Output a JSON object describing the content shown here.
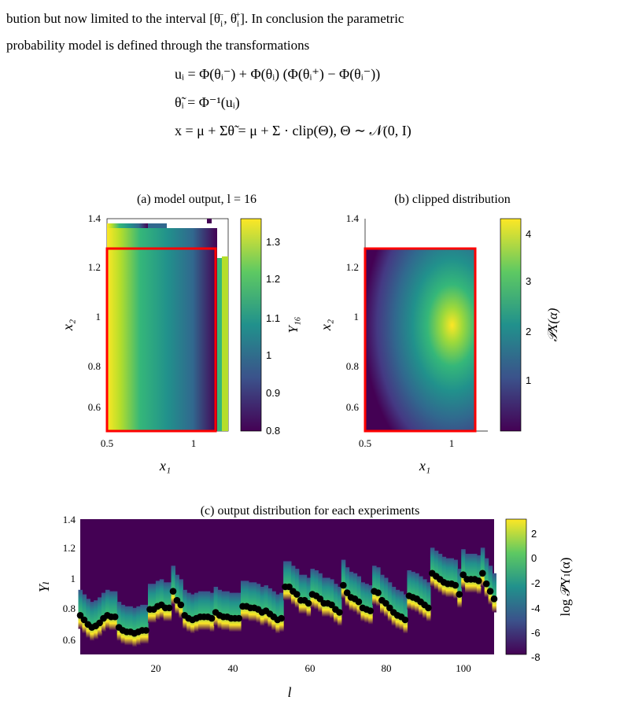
{
  "text": {
    "line1": "bution but now limited to the interval [θ",
    "line1_sub": "i",
    "line1_sup_minus": "−",
    "line1_mid": ", θ",
    "line1_sup_plus": "+",
    "line1_end": "]. In conclusion the parametric",
    "line2": "probability model is defined through the transformations"
  },
  "equations": {
    "eq1": "uᵢ = Φ(θᵢ⁻) + Φ(θᵢ) (Φ(θᵢ⁺) − Φ(θᵢ⁻))",
    "eq2": "θ̃ᵢ = Φ⁻¹(uᵢ)",
    "eq3": "x = μ + Σθ̃ = μ + Σ · clip(Θ),  Θ ∼ 𝒩(0, I)"
  },
  "figures": {
    "a": {
      "title": "(a) model output, l = 16",
      "xlabel": "x₁",
      "ylabel": "x₂",
      "xticks": [
        "0.5",
        "1"
      ],
      "yticks": [
        "0.6",
        "0.8",
        "1",
        "1.2",
        "1.4"
      ],
      "colorbar_label": "Y₁₆",
      "colorbar_ticks": [
        "0.8",
        "0.9",
        "1",
        "1.1",
        "1.2",
        "1.3"
      ]
    },
    "b": {
      "title": "(b) clipped distribution",
      "xlabel": "x₁",
      "ylabel": "x₂",
      "xticks": [
        "0.5",
        "1"
      ],
      "yticks": [
        "0.6",
        "0.8",
        "1",
        "1.2",
        "1.4"
      ],
      "colorbar_label": "𝒫X(α)",
      "colorbar_ticks": [
        "1",
        "2",
        "3",
        "4"
      ]
    },
    "c": {
      "title": "(c) output distribution for each experiments",
      "xlabel": "l",
      "ylabel": "Yₗ",
      "xticks": [
        "20",
        "40",
        "60",
        "80",
        "100"
      ],
      "yticks": [
        "0.6",
        "0.8",
        "1",
        "1.2",
        "1.4"
      ],
      "colorbar_label": "log 𝒫Yₗ(α)",
      "colorbar_ticks": [
        "2",
        "0",
        "-2",
        "-4",
        "-6",
        "-8"
      ]
    }
  },
  "colors": {
    "highlight": "#ff0000",
    "viridis_low": "#440154",
    "viridis_high": "#fde725",
    "points": "#000000"
  },
  "chart_data": [
    {
      "type": "heatmap",
      "title": "(a) model output, l = 16",
      "xlabel": "x₁",
      "ylabel": "x₂",
      "xlim": [
        0.5,
        1.2
      ],
      "ylim": [
        0.5,
        1.4
      ],
      "clim": [
        0.8,
        1.35
      ],
      "highlight_box": {
        "x": [
          0.5,
          1.13
        ],
        "y": [
          0.5,
          1.27
        ]
      }
    },
    {
      "type": "heatmap",
      "title": "(b) clipped distribution",
      "xlabel": "x₁",
      "ylabel": "x₂",
      "xlim": [
        0.5,
        1.13
      ],
      "ylim": [
        0.5,
        1.4
      ],
      "clim": [
        0,
        4.3
      ],
      "peak": {
        "x": 1.0,
        "y": 1.0
      },
      "highlight_box": {
        "x": [
          0.5,
          1.13
        ],
        "y": [
          0.5,
          1.27
        ]
      }
    },
    {
      "type": "scatter",
      "title": "(c) output distribution for each experiments",
      "xlabel": "l",
      "ylabel": "Yₗ",
      "xlim": [
        1,
        108
      ],
      "ylim": [
        0.5,
        1.4
      ],
      "clim": [
        -8,
        3
      ],
      "x": [
        1,
        2,
        3,
        4,
        5,
        6,
        7,
        8,
        9,
        10,
        11,
        12,
        13,
        14,
        15,
        16,
        17,
        18,
        19,
        20,
        21,
        22,
        23,
        24,
        25,
        26,
        27,
        28,
        29,
        30,
        31,
        32,
        33,
        34,
        35,
        36,
        37,
        38,
        39,
        40,
        41,
        42,
        43,
        44,
        45,
        46,
        47,
        48,
        49,
        50,
        51,
        52,
        53,
        54,
        55,
        56,
        57,
        58,
        59,
        60,
        61,
        62,
        63,
        64,
        65,
        66,
        67,
        68,
        69,
        70,
        71,
        72,
        73,
        74,
        75,
        76,
        77,
        78,
        79,
        80,
        81,
        82,
        83,
        84,
        85,
        86,
        87,
        88,
        89,
        90,
        91,
        92,
        93,
        94,
        95,
        96,
        97,
        98,
        99,
        100,
        101,
        102,
        103,
        104,
        105,
        106,
        107,
        108
      ],
      "y": [
        0.76,
        0.73,
        0.7,
        0.68,
        0.69,
        0.71,
        0.74,
        0.76,
        0.75,
        0.75,
        0.68,
        0.66,
        0.65,
        0.65,
        0.64,
        0.65,
        0.66,
        0.66,
        0.8,
        0.8,
        0.82,
        0.83,
        0.81,
        0.81,
        0.92,
        0.86,
        0.83,
        0.76,
        0.74,
        0.73,
        0.74,
        0.75,
        0.75,
        0.75,
        0.74,
        0.78,
        0.76,
        0.75,
        0.75,
        0.74,
        0.74,
        0.74,
        0.82,
        0.82,
        0.81,
        0.81,
        0.8,
        0.78,
        0.79,
        0.77,
        0.75,
        0.73,
        0.74,
        0.95,
        0.95,
        0.92,
        0.9,
        0.86,
        0.86,
        0.84,
        0.9,
        0.89,
        0.87,
        0.84,
        0.84,
        0.83,
        0.8,
        0.78,
        0.96,
        0.91,
        0.88,
        0.87,
        0.85,
        0.81,
        0.8,
        0.79,
        0.92,
        0.91,
        0.86,
        0.84,
        0.81,
        0.78,
        0.76,
        0.75,
        0.73,
        0.89,
        0.88,
        0.87,
        0.85,
        0.83,
        0.81,
        1.04,
        1.02,
        1.0,
        0.98,
        0.97,
        0.97,
        0.96,
        0.9,
        1.03,
        1.0,
        1.0,
        1.0,
        0.99,
        1.04,
        0.97,
        0.92,
        0.87
      ]
    }
  ]
}
